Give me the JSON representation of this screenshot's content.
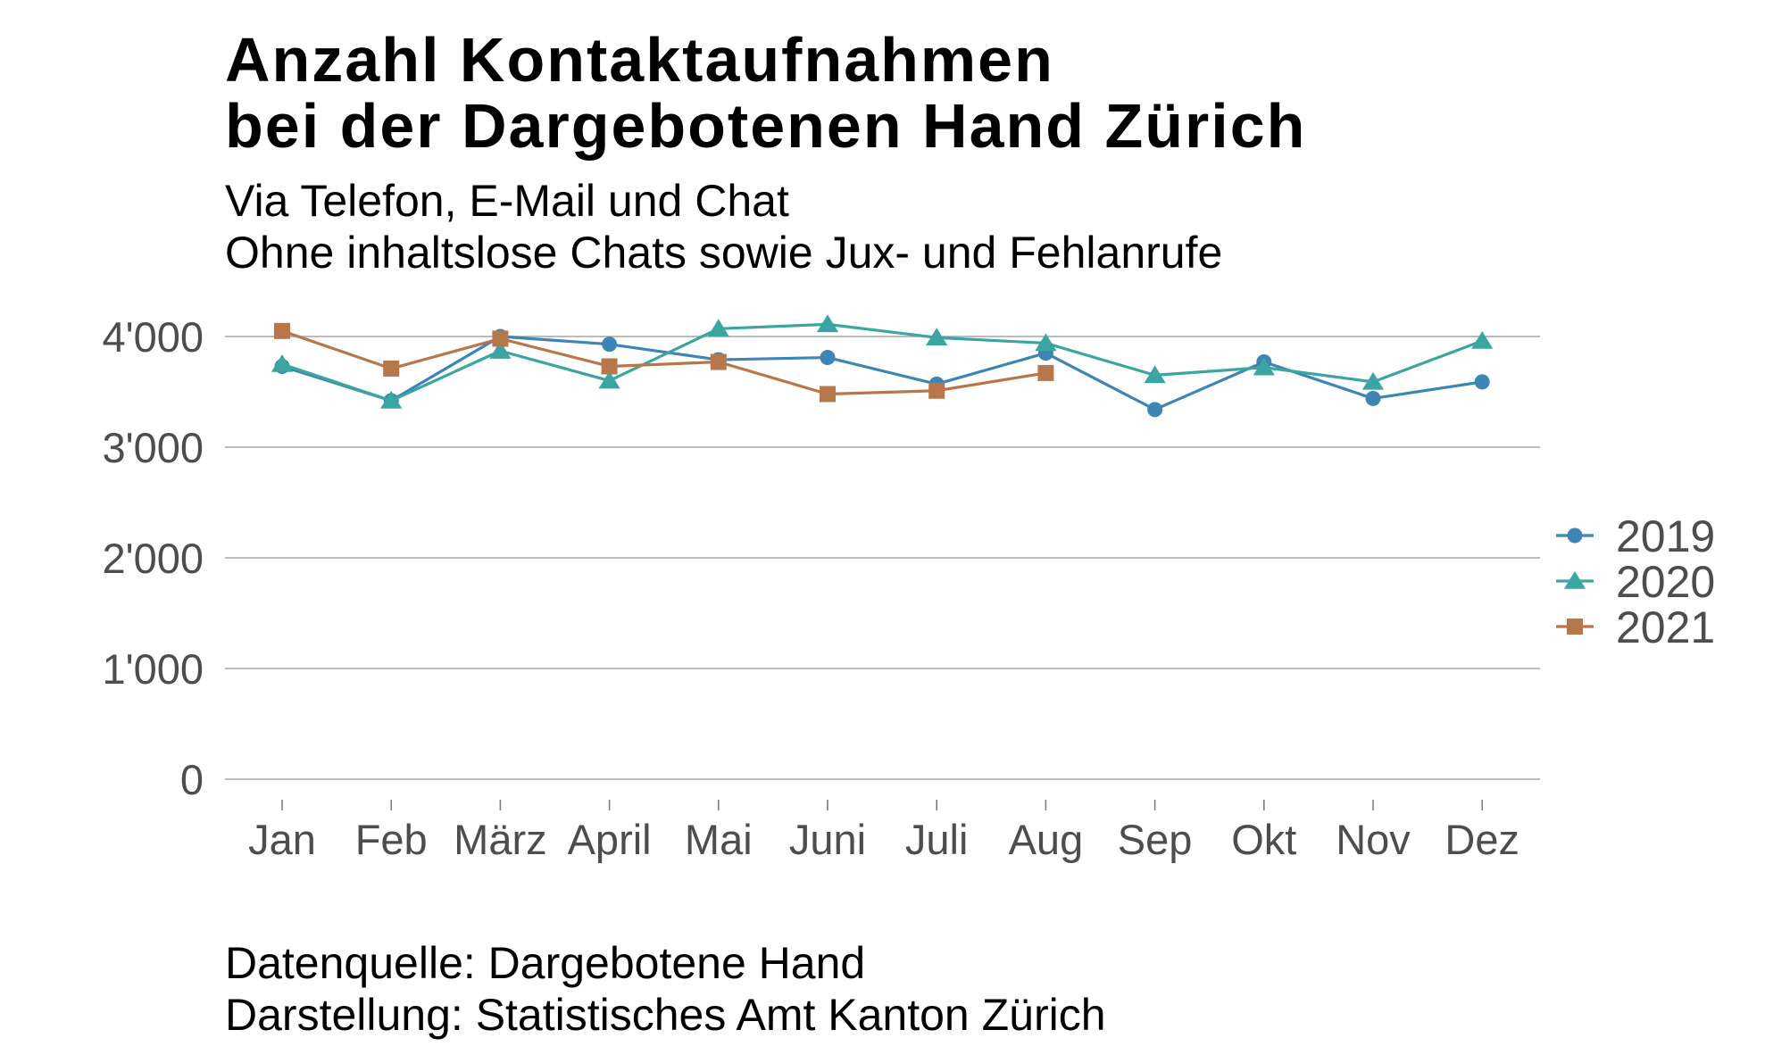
{
  "header": {
    "title_line1": "Anzahl Kontaktaufnahmen",
    "title_line2": "bei der Dargebotenen Hand Zürich",
    "subtitle_line1": "Via Telefon, E-Mail und Chat",
    "subtitle_line2": "Ohne inhaltslose Chats sowie Jux- und Fehlanrufe"
  },
  "footer": {
    "source_line1": "Datenquelle: Dargebotene Hand",
    "source_line2": "Darstellung: Statistisches Amt Kanton Zürich"
  },
  "chart_data": {
    "type": "line",
    "title": "Anzahl Kontaktaufnahmen bei der Dargebotenen Hand Zürich",
    "subtitle": "Via Telefon, E-Mail und Chat / Ohne inhaltslose Chats sowie Jux- und Fehlanrufe",
    "xlabel": "",
    "ylabel": "",
    "categories": [
      "Jan",
      "Feb",
      "März",
      "April",
      "Mai",
      "Juni",
      "Juli",
      "Aug",
      "Sep",
      "Okt",
      "Nov",
      "Dez"
    ],
    "ylim": [
      0,
      4000
    ],
    "yticks": [
      0,
      1000,
      2000,
      3000,
      4000
    ],
    "ytick_labels": [
      "0",
      "1'000",
      "2'000",
      "3'000",
      "4'000"
    ],
    "grid": "horizontal",
    "legend_position": "right",
    "series": [
      {
        "name": "2019",
        "color": "#3d85b5",
        "marker": "circle",
        "values": [
          3730,
          3420,
          4000,
          3930,
          3790,
          3810,
          3570,
          3850,
          3340,
          3770,
          3440,
          3590
        ]
      },
      {
        "name": "2020",
        "color": "#3aa5a1",
        "marker": "triangle",
        "values": [
          3750,
          3420,
          3870,
          3600,
          4070,
          4110,
          3990,
          3940,
          3650,
          3720,
          3590,
          3960
        ]
      },
      {
        "name": "2021",
        "color": "#b8774a",
        "marker": "square",
        "values": [
          4050,
          3710,
          3980,
          3730,
          3770,
          3480,
          3510,
          3670,
          null,
          null,
          null,
          null
        ]
      }
    ]
  }
}
